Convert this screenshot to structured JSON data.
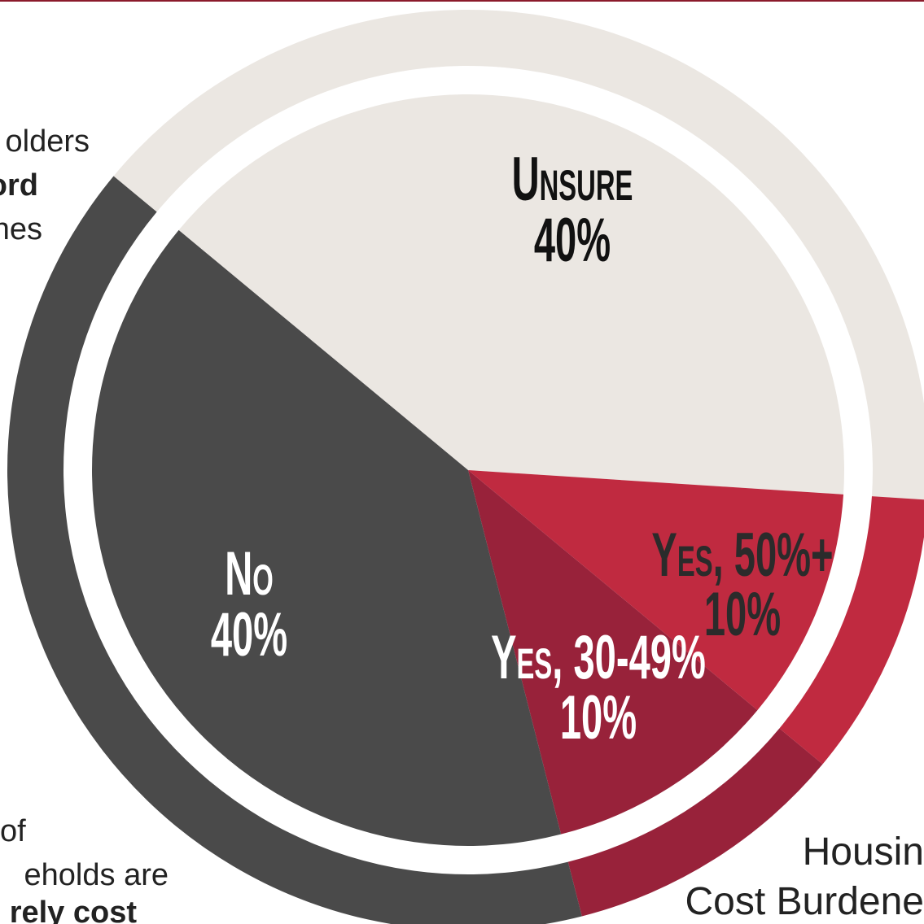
{
  "chart_data": {
    "type": "pie",
    "categories": [
      "Unsure",
      "Yes, 50%+",
      "Yes, 30-49%",
      "No"
    ],
    "values": [
      40,
      10,
      10,
      40
    ],
    "value_labels": [
      "40%",
      "10%",
      "10%",
      "40%"
    ],
    "colors": [
      "#ebe7e2",
      "#c02a40",
      "#98223a",
      "#4a4a4a"
    ],
    "annotations": [
      "olders",
      "ord",
      "nes",
      "of",
      "eholds are",
      "rely cost",
      "Housin",
      "Cost Burdene"
    ]
  }
}
